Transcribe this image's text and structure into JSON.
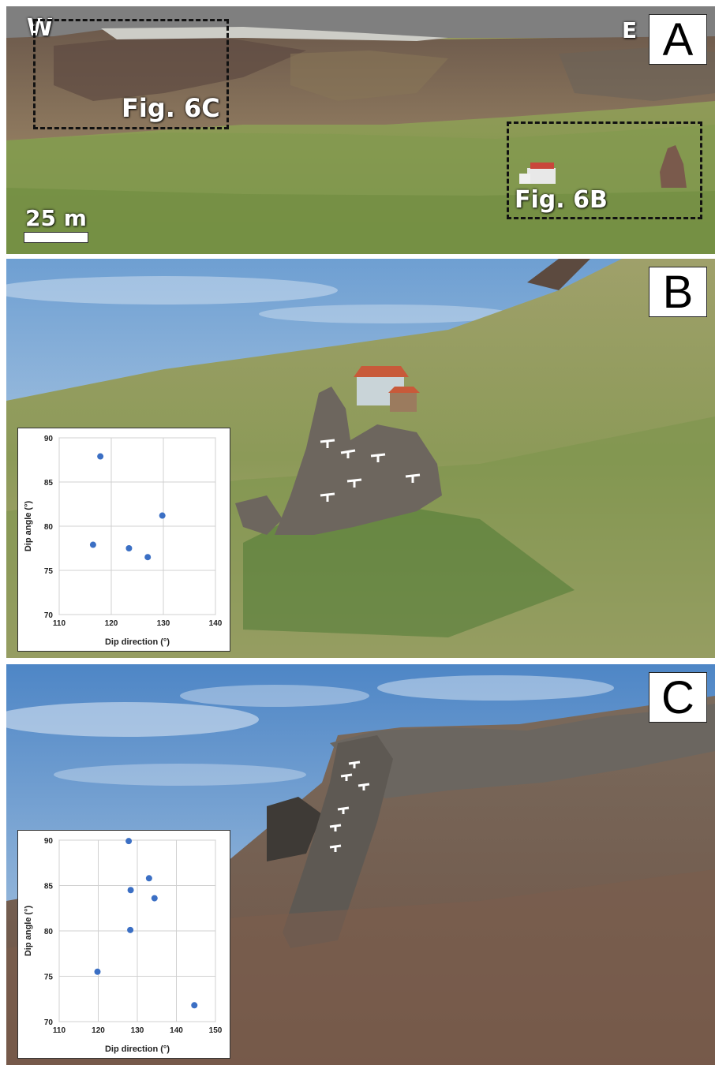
{
  "panels": {
    "a": {
      "letter": "A",
      "west_label": "W",
      "east_label": "E",
      "box_c_label": "Fig. 6C",
      "box_b_label": "Fig. 6B",
      "scale_label": "25 m"
    },
    "b": {
      "letter": "B"
    },
    "c": {
      "letter": "C"
    }
  },
  "chart_data": [
    {
      "type": "scatter",
      "panel": "B",
      "xlabel": "Dip direction (°)",
      "ylabel": "Dip angle (°)",
      "xlim": [
        110,
        140
      ],
      "ylim": [
        70,
        90
      ],
      "xticks": [
        110,
        120,
        130,
        140
      ],
      "yticks": [
        70,
        75,
        80,
        85,
        90
      ],
      "grid": true,
      "marker_color": "#3b6fc4",
      "points": [
        {
          "x": 117.9,
          "y": 87.9
        },
        {
          "x": 116.5,
          "y": 77.9
        },
        {
          "x": 123.4,
          "y": 77.5
        },
        {
          "x": 127.0,
          "y": 76.5
        },
        {
          "x": 129.8,
          "y": 81.2
        }
      ]
    },
    {
      "type": "scatter",
      "panel": "C",
      "xlabel": "Dip direction (°)",
      "ylabel": "Dip angle (°)",
      "xlim": [
        110,
        150
      ],
      "ylim": [
        70,
        90
      ],
      "xticks": [
        110,
        120,
        130,
        140,
        150
      ],
      "yticks": [
        70,
        75,
        80,
        85,
        90
      ],
      "grid": true,
      "marker_color": "#3b6fc4",
      "points": [
        {
          "x": 127.8,
          "y": 89.9
        },
        {
          "x": 133.0,
          "y": 85.8
        },
        {
          "x": 128.3,
          "y": 84.5
        },
        {
          "x": 134.4,
          "y": 83.6
        },
        {
          "x": 128.2,
          "y": 80.1
        },
        {
          "x": 119.8,
          "y": 75.5
        },
        {
          "x": 144.6,
          "y": 71.8
        }
      ]
    }
  ]
}
